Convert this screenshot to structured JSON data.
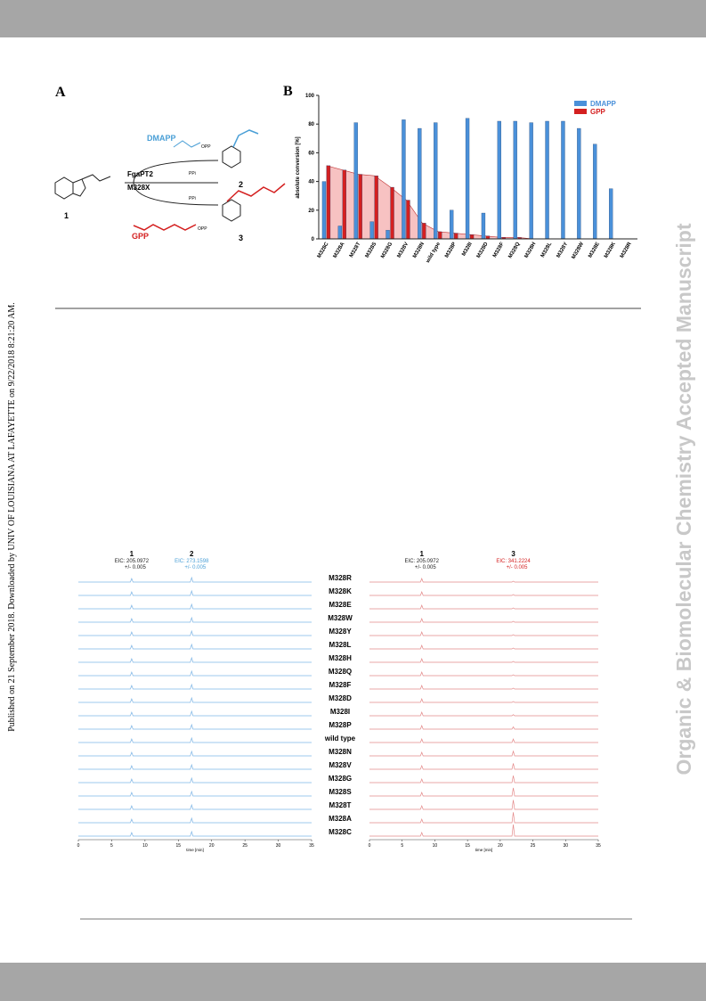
{
  "sidebar": "Published on 21 September 2018. Downloaded by UNIV OF LOUISIANA AT LAFAYETTE on 9/22/2018 8:21:20 AM.",
  "watermark": "Organic & Biomolecular Chemistry Accepted Manuscript",
  "scheme": {
    "panel": "A",
    "enzyme": "FgaPT2",
    "mutant": "M328X",
    "donor1": "DMAPP",
    "donor2": "GPP",
    "opp": "OPP",
    "ppi": "PPi",
    "compound1": "1",
    "compound2": "2",
    "compound3": "3"
  },
  "chart_data": {
    "type": "bar",
    "panel": "B",
    "ylabel": "absolute conversion [%]",
    "categories": [
      "M328C",
      "M328A",
      "M328T",
      "M328S",
      "M328G",
      "M328V",
      "M328N",
      "wild type",
      "M328P",
      "M328I",
      "M328D",
      "M328F",
      "M328Q",
      "M328H",
      "M328L",
      "M328Y",
      "M328W",
      "M328E",
      "M328K",
      "M328R"
    ],
    "series": [
      {
        "name": "DMAPP",
        "color": "#4a90d9",
        "values": [
          40,
          9,
          81,
          12,
          6,
          83,
          77,
          81,
          20,
          84,
          18,
          82,
          82,
          81,
          82,
          82,
          77,
          66,
          35,
          0
        ]
      },
      {
        "name": "GPP",
        "color": "#d42020",
        "values": [
          51,
          48,
          45,
          44,
          36,
          27,
          11,
          5,
          4,
          3,
          2,
          1,
          1,
          0,
          0,
          0,
          0,
          0,
          0,
          0
        ]
      }
    ],
    "ylim": [
      0,
      100
    ],
    "yticks": [
      0,
      20,
      40,
      60,
      80,
      100
    ],
    "legend": "top-right"
  },
  "chromatogram": {
    "xlabel": "time [min]",
    "xlim": [
      0,
      35
    ],
    "xticks": [
      0,
      5,
      10,
      15,
      20,
      25,
      30,
      35
    ],
    "samples": [
      "M328R",
      "M328K",
      "M328E",
      "M328W",
      "M328Y",
      "M328L",
      "M328H",
      "M328Q",
      "M328F",
      "M328D",
      "M328I",
      "M328P",
      "wild type",
      "M328N",
      "M328V",
      "M328G",
      "M328S",
      "M328T",
      "M328A",
      "M328C"
    ],
    "left": {
      "peak_a": {
        "number": "1",
        "eic": "EIC: 205.0972",
        "tol": "+/- 0.005"
      },
      "peak_b": {
        "number": "2",
        "eic": "EIC: 273.1598",
        "tol": "+/- 0.005"
      }
    },
    "right": {
      "peak_a": {
        "number": "1",
        "eic": "EIC: 205.0972",
        "tol": "+/- 0.005"
      },
      "peak_b": {
        "number": "3",
        "eic": "EIC: 341.2224",
        "tol": "+/- 0.005"
      }
    }
  }
}
